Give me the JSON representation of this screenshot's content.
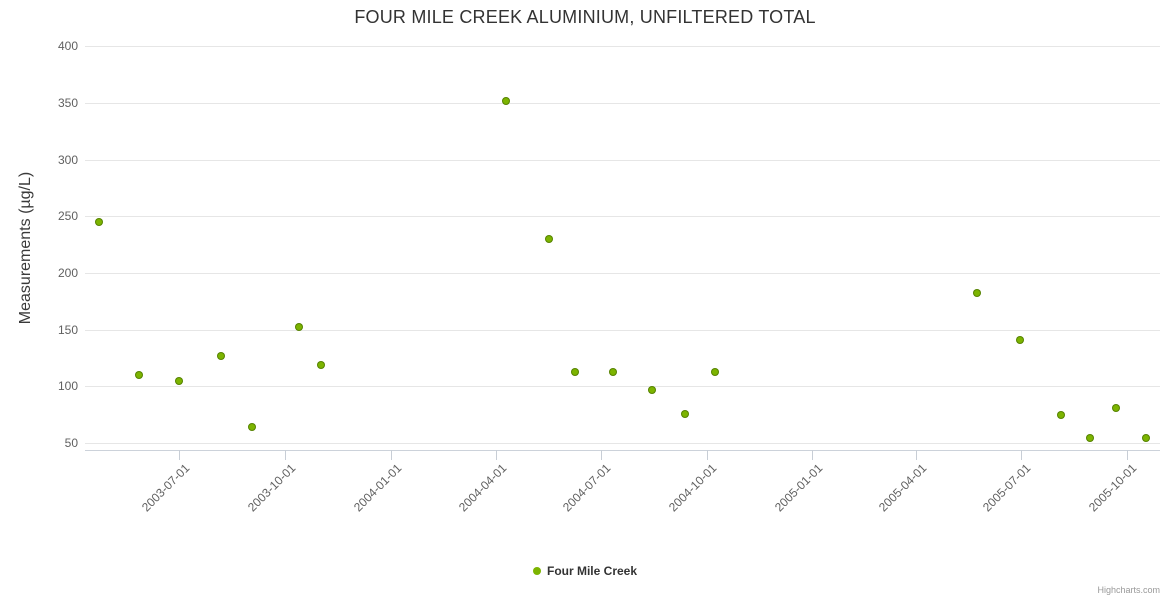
{
  "title": "FOUR MILE CREEK ALUMINIUM, UNFILTERED TOTAL",
  "credits": "Highcharts.com",
  "legend": {
    "items": [
      {
        "label": "Four Mile Creek",
        "color": "#7cb400"
      }
    ]
  },
  "chart_data": {
    "type": "scatter",
    "title": "FOUR MILE CREEK ALUMINIUM, UNFILTERED TOTAL",
    "xlabel": "",
    "ylabel": "Measurements (µg/L)",
    "ylim": [
      44,
      400
    ],
    "yticks": [
      50,
      100,
      150,
      200,
      250,
      300,
      350,
      400
    ],
    "xlim": [
      "2003-04-10",
      "2005-10-30"
    ],
    "xticks": [
      "2003-07-01",
      "2003-10-01",
      "2004-01-01",
      "2004-04-01",
      "2004-07-01",
      "2004-10-01",
      "2005-01-01",
      "2005-04-01",
      "2005-07-01",
      "2005-10-01"
    ],
    "grid": "horizontal",
    "legend_position": "bottom-center",
    "series": [
      {
        "name": "Four Mile Creek",
        "color": "#7cb400",
        "points": [
          {
            "x": "2003-04-22",
            "y": 245
          },
          {
            "x": "2003-05-27",
            "y": 110
          },
          {
            "x": "2003-07-01",
            "y": 105
          },
          {
            "x": "2003-08-06",
            "y": 127
          },
          {
            "x": "2003-09-02",
            "y": 64
          },
          {
            "x": "2003-10-13",
            "y": 152
          },
          {
            "x": "2003-11-01",
            "y": 119
          },
          {
            "x": "2004-04-10",
            "y": 352
          },
          {
            "x": "2004-05-17",
            "y": 230
          },
          {
            "x": "2004-06-09",
            "y": 113
          },
          {
            "x": "2004-07-12",
            "y": 113
          },
          {
            "x": "2004-08-15",
            "y": 97
          },
          {
            "x": "2004-09-12",
            "y": 76
          },
          {
            "x": "2004-10-08",
            "y": 113
          },
          {
            "x": "2005-05-24",
            "y": 182
          },
          {
            "x": "2005-06-30",
            "y": 141
          },
          {
            "x": "2005-08-05",
            "y": 75
          },
          {
            "x": "2005-08-30",
            "y": 55
          },
          {
            "x": "2005-09-22",
            "y": 81
          },
          {
            "x": "2005-10-18",
            "y": 55
          }
        ]
      }
    ]
  }
}
